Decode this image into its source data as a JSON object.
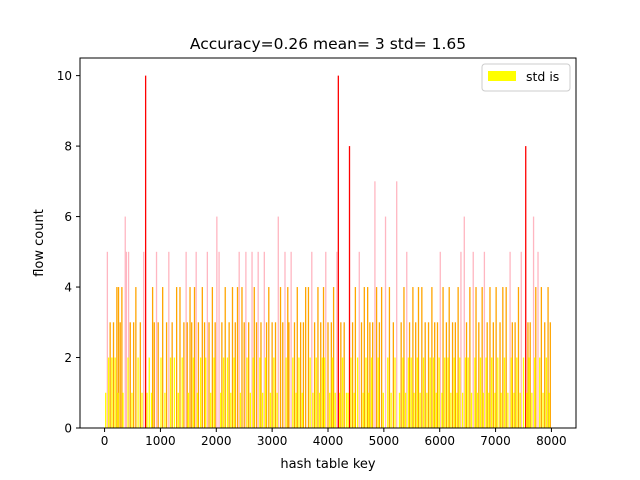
{
  "chart_data": {
    "type": "bar",
    "title": "Accuracy=0.26 mean= 3 std= 1.65",
    "xlabel": "hash table key",
    "ylabel": "flow count",
    "xlim": [
      -440,
      8440
    ],
    "ylim": [
      0,
      10.5
    ],
    "xticks": [
      0,
      1000,
      2000,
      3000,
      4000,
      5000,
      6000,
      7000,
      8000
    ],
    "yticks": [
      0,
      2,
      4,
      6,
      8,
      10
    ],
    "grid": false,
    "legend": {
      "placement": "top-right",
      "entries": [
        {
          "label": "std is",
          "color": "#ffff00"
        }
      ]
    },
    "color_rule": {
      "yellow": "#ffff00",
      "orange": "#ffa500",
      "red": "#ff0000",
      "pink": "#ffb6c1"
    },
    "series": [
      {
        "color": "#ff0000",
        "points": [
          [
            735,
            10
          ],
          [
            4185,
            10
          ],
          [
            4385,
            8
          ],
          [
            7540,
            8
          ]
        ]
      },
      {
        "color": "#ffb6c1",
        "points": [
          [
            50,
            5
          ],
          [
            370,
            6
          ],
          [
            390,
            5
          ],
          [
            430,
            5
          ],
          [
            700,
            5
          ],
          [
            930,
            5
          ],
          [
            1150,
            5
          ],
          [
            1460,
            5
          ],
          [
            1640,
            5
          ],
          [
            1840,
            5
          ],
          [
            2010,
            6
          ],
          [
            2050,
            5
          ],
          [
            2410,
            5
          ],
          [
            2530,
            5
          ],
          [
            2640,
            5
          ],
          [
            2750,
            5
          ],
          [
            2860,
            5
          ],
          [
            3110,
            6
          ],
          [
            3230,
            5
          ],
          [
            3340,
            5
          ],
          [
            3710,
            5
          ],
          [
            3960,
            5
          ],
          [
            4160,
            5
          ],
          [
            4560,
            5
          ],
          [
            4840,
            7
          ],
          [
            5030,
            6
          ],
          [
            5230,
            7
          ],
          [
            5410,
            5
          ],
          [
            6010,
            5
          ],
          [
            6380,
            5
          ],
          [
            6440,
            6
          ],
          [
            6600,
            5
          ],
          [
            6800,
            5
          ],
          [
            7260,
            5
          ],
          [
            7460,
            5
          ],
          [
            7680,
            6
          ],
          [
            7760,
            5
          ]
        ]
      },
      {
        "color": "#ffa500",
        "points": [
          [
            100,
            3
          ],
          [
            160,
            3
          ],
          [
            220,
            4
          ],
          [
            250,
            4
          ],
          [
            280,
            3
          ],
          [
            310,
            4
          ],
          [
            460,
            3
          ],
          [
            520,
            3
          ],
          [
            560,
            4
          ],
          [
            640,
            3
          ],
          [
            860,
            4
          ],
          [
            890,
            3
          ],
          [
            960,
            3
          ],
          [
            1040,
            4
          ],
          [
            1110,
            3
          ],
          [
            1210,
            3
          ],
          [
            1290,
            4
          ],
          [
            1350,
            4
          ],
          [
            1420,
            3
          ],
          [
            1480,
            3
          ],
          [
            1530,
            4
          ],
          [
            1560,
            3
          ],
          [
            1610,
            4
          ],
          [
            1680,
            3
          ],
          [
            1750,
            4
          ],
          [
            1790,
            3
          ],
          [
            1870,
            3
          ],
          [
            1930,
            4
          ],
          [
            1980,
            3
          ],
          [
            2100,
            3
          ],
          [
            2160,
            4
          ],
          [
            2230,
            3
          ],
          [
            2290,
            4
          ],
          [
            2340,
            3
          ],
          [
            2380,
            4
          ],
          [
            2460,
            4
          ],
          [
            2500,
            3
          ],
          [
            2580,
            3
          ],
          [
            2680,
            4
          ],
          [
            2720,
            3
          ],
          [
            2800,
            3
          ],
          [
            2900,
            3
          ],
          [
            2940,
            4
          ],
          [
            3000,
            3
          ],
          [
            3060,
            3
          ],
          [
            3150,
            4
          ],
          [
            3190,
            3
          ],
          [
            3280,
            4
          ],
          [
            3300,
            3
          ],
          [
            3400,
            3
          ],
          [
            3450,
            4
          ],
          [
            3510,
            3
          ],
          [
            3560,
            3
          ],
          [
            3600,
            4
          ],
          [
            3650,
            4
          ],
          [
            3760,
            3
          ],
          [
            3820,
            4
          ],
          [
            3870,
            3
          ],
          [
            3920,
            4
          ],
          [
            4000,
            3
          ],
          [
            4060,
            3
          ],
          [
            4100,
            4
          ],
          [
            4230,
            3
          ],
          [
            4290,
            3
          ],
          [
            4440,
            3
          ],
          [
            4490,
            4
          ],
          [
            4600,
            3
          ],
          [
            4650,
            4
          ],
          [
            4710,
            4
          ],
          [
            4750,
            3
          ],
          [
            4800,
            3
          ],
          [
            4870,
            4
          ],
          [
            4920,
            3
          ],
          [
            4960,
            4
          ],
          [
            5100,
            4
          ],
          [
            5170,
            3
          ],
          [
            5310,
            3
          ],
          [
            5360,
            4
          ],
          [
            5460,
            3
          ],
          [
            5520,
            4
          ],
          [
            5570,
            3
          ],
          [
            5620,
            4
          ],
          [
            5680,
            4
          ],
          [
            5740,
            3
          ],
          [
            5800,
            3
          ],
          [
            5860,
            4
          ],
          [
            5910,
            3
          ],
          [
            5960,
            3
          ],
          [
            6060,
            4
          ],
          [
            6120,
            3
          ],
          [
            6170,
            4
          ],
          [
            6230,
            3
          ],
          [
            6280,
            3
          ],
          [
            6330,
            4
          ],
          [
            6480,
            3
          ],
          [
            6540,
            4
          ],
          [
            6650,
            4
          ],
          [
            6700,
            3
          ],
          [
            6760,
            4
          ],
          [
            6850,
            3
          ],
          [
            6900,
            4
          ],
          [
            6960,
            3
          ],
          [
            7010,
            4
          ],
          [
            7080,
            3
          ],
          [
            7130,
            4
          ],
          [
            7190,
            4
          ],
          [
            7300,
            3
          ],
          [
            7350,
            3
          ],
          [
            7410,
            4
          ],
          [
            7580,
            3
          ],
          [
            7620,
            3
          ],
          [
            7720,
            4
          ],
          [
            7820,
            4
          ],
          [
            7880,
            3
          ],
          [
            7940,
            4
          ],
          [
            7980,
            3
          ]
        ]
      },
      {
        "color": "#ffff00",
        "points": [
          [
            20,
            1
          ],
          [
            70,
            2
          ],
          [
            130,
            2
          ],
          [
            190,
            2
          ],
          [
            240,
            1
          ],
          [
            330,
            1
          ],
          [
            420,
            2
          ],
          [
            490,
            1
          ],
          [
            600,
            2
          ],
          [
            670,
            1
          ],
          [
            760,
            1
          ],
          [
            800,
            2
          ],
          [
            840,
            1
          ],
          [
            1010,
            2
          ],
          [
            1080,
            1
          ],
          [
            1180,
            2
          ],
          [
            1250,
            2
          ],
          [
            1320,
            1
          ],
          [
            1390,
            2
          ],
          [
            1500,
            1
          ],
          [
            1590,
            2
          ],
          [
            1660,
            1
          ],
          [
            1720,
            2
          ],
          [
            1810,
            2
          ],
          [
            1900,
            1
          ],
          [
            1960,
            2
          ],
          [
            2080,
            1
          ],
          [
            2130,
            2
          ],
          [
            2200,
            2
          ],
          [
            2260,
            1
          ],
          [
            2320,
            2
          ],
          [
            2430,
            1
          ],
          [
            2550,
            2
          ],
          [
            2610,
            1
          ],
          [
            2660,
            2
          ],
          [
            2780,
            2
          ],
          [
            2830,
            1
          ],
          [
            2880,
            2
          ],
          [
            2970,
            1
          ],
          [
            3030,
            2
          ],
          [
            3090,
            1
          ],
          [
            3250,
            2
          ],
          [
            3370,
            2
          ],
          [
            3430,
            1
          ],
          [
            3480,
            2
          ],
          [
            3540,
            1
          ],
          [
            3680,
            2
          ],
          [
            3730,
            1
          ],
          [
            3790,
            2
          ],
          [
            3850,
            1
          ],
          [
            3900,
            2
          ],
          [
            3940,
            2
          ],
          [
            4030,
            1
          ],
          [
            4080,
            2
          ],
          [
            4130,
            1
          ],
          [
            4210,
            1
          ],
          [
            4260,
            2
          ],
          [
            4330,
            1
          ],
          [
            4360,
            1
          ],
          [
            4410,
            2
          ],
          [
            4470,
            1
          ],
          [
            4530,
            2
          ],
          [
            4630,
            1
          ],
          [
            4680,
            2
          ],
          [
            4730,
            1
          ],
          [
            4780,
            2
          ],
          [
            4900,
            2
          ],
          [
            4990,
            1
          ],
          [
            5070,
            2
          ],
          [
            5130,
            1
          ],
          [
            5200,
            2
          ],
          [
            5280,
            1
          ],
          [
            5340,
            2
          ],
          [
            5390,
            1
          ],
          [
            5440,
            2
          ],
          [
            5490,
            2
          ],
          [
            5540,
            1
          ],
          [
            5600,
            2
          ],
          [
            5650,
            1
          ],
          [
            5710,
            2
          ],
          [
            5770,
            1
          ],
          [
            5830,
            2
          ],
          [
            5890,
            2
          ],
          [
            5940,
            1
          ],
          [
            5990,
            2
          ],
          [
            6040,
            1
          ],
          [
            6090,
            2
          ],
          [
            6150,
            2
          ],
          [
            6200,
            1
          ],
          [
            6260,
            2
          ],
          [
            6310,
            1
          ],
          [
            6360,
            2
          ],
          [
            6410,
            1
          ],
          [
            6460,
            2
          ],
          [
            6510,
            2
          ],
          [
            6570,
            1
          ],
          [
            6630,
            2
          ],
          [
            6680,
            1
          ],
          [
            6730,
            2
          ],
          [
            6780,
            1
          ],
          [
            6830,
            2
          ],
          [
            6880,
            1
          ],
          [
            6930,
            2
          ],
          [
            6990,
            1
          ],
          [
            7040,
            2
          ],
          [
            7100,
            1
          ],
          [
            7160,
            2
          ],
          [
            7220,
            1
          ],
          [
            7280,
            2
          ],
          [
            7330,
            1
          ],
          [
            7380,
            2
          ],
          [
            7440,
            1
          ],
          [
            7500,
            2
          ],
          [
            7560,
            1
          ],
          [
            7600,
            2
          ],
          [
            7650,
            1
          ],
          [
            7700,
            2
          ],
          [
            7790,
            2
          ],
          [
            7850,
            1
          ],
          [
            7910,
            2
          ],
          [
            7960,
            1
          ]
        ]
      }
    ]
  }
}
